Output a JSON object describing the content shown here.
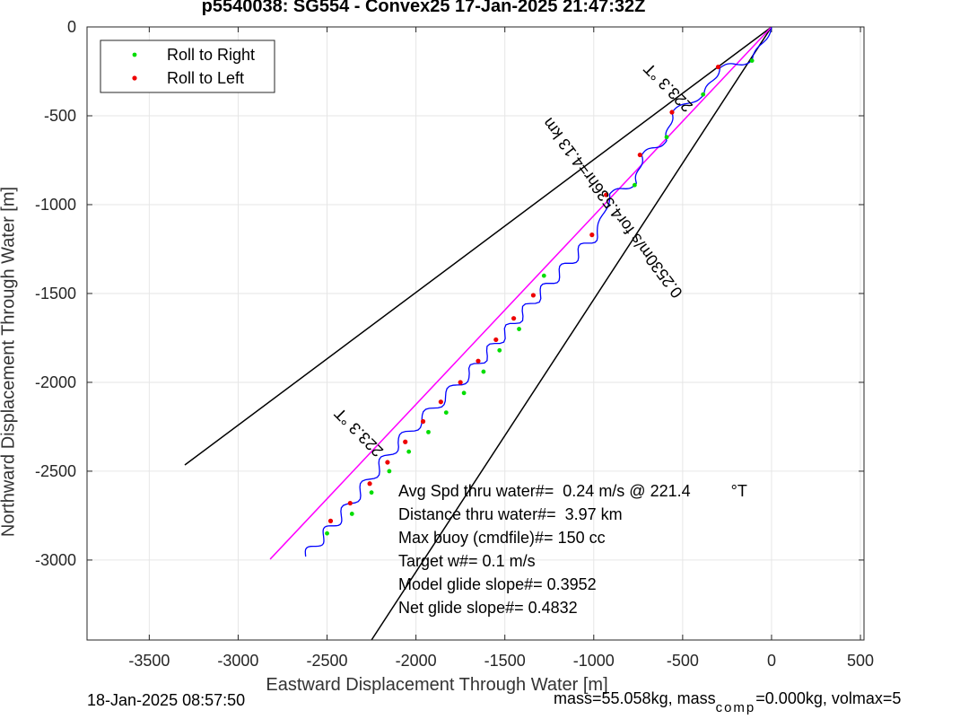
{
  "title": "p5540038: SG554 - Convex25 17-Jan-2025 21:47:32Z",
  "footer": {
    "date": "18-Jan-2025 08:57:50",
    "mass_prefix": "mass=55.058kg, mass",
    "mass_sub": "comp",
    "mass_suffix": "=0.000kg, volmax=5"
  },
  "colors": {
    "track": "#0000ff",
    "course": "#ff00ff",
    "cone": "#000000",
    "roll_right": "#00dd00",
    "roll_left": "#ee0000",
    "grid": "#e6e6e6"
  },
  "chart_data": {
    "type": "scatter",
    "xlabel": "Eastward Displacement Through Water [m]",
    "ylabel": "Northward Displacement Through Water [m]",
    "xlim": [
      -3850,
      520
    ],
    "ylim": [
      -3450,
      0
    ],
    "xticks": [
      -3500,
      -3000,
      -2500,
      -2000,
      -1500,
      -1000,
      -500,
      0,
      500
    ],
    "yticks": [
      0,
      -500,
      -1000,
      -1500,
      -2000,
      -2500,
      -3000
    ],
    "grid": true,
    "legend_position": "top-left",
    "legend": [
      "Roll to Right",
      "Roll to Left"
    ],
    "course_line": {
      "x": [
        0,
        -2820
      ],
      "y": [
        0,
        -2995
      ]
    },
    "cone_lines": [
      {
        "x": [
          0,
          -3300
        ],
        "y": [
          0,
          -2465
        ]
      },
      {
        "x": [
          0,
          -2250
        ],
        "y": [
          0,
          -3450
        ]
      }
    ],
    "track_anchors": [
      {
        "x": 0,
        "y": 0
      },
      {
        "x": -110,
        "y": -190
      },
      {
        "x": -290,
        "y": -230
      },
      {
        "x": -380,
        "y": -380
      },
      {
        "x": -560,
        "y": -480
      },
      {
        "x": -590,
        "y": -640
      },
      {
        "x": -730,
        "y": -720
      },
      {
        "x": -760,
        "y": -880
      },
      {
        "x": -910,
        "y": -940
      },
      {
        "x": -980,
        "y": -1160
      },
      {
        "x": -1300,
        "y": -1500
      },
      {
        "x": -1700,
        "y": -1950
      },
      {
        "x": -2100,
        "y": -2340
      },
      {
        "x": -2420,
        "y": -2750
      },
      {
        "x": -2620,
        "y": -2980
      }
    ],
    "roll_left_points": [
      {
        "x": -300,
        "y": -225
      },
      {
        "x": -560,
        "y": -480
      },
      {
        "x": -740,
        "y": -720
      },
      {
        "x": -930,
        "y": -945
      },
      {
        "x": -1010,
        "y": -1170
      },
      {
        "x": -1340,
        "y": -1510
      },
      {
        "x": -1450,
        "y": -1640
      },
      {
        "x": -1550,
        "y": -1760
      },
      {
        "x": -1650,
        "y": -1880
      },
      {
        "x": -1750,
        "y": -2000
      },
      {
        "x": -1860,
        "y": -2110
      },
      {
        "x": -1960,
        "y": -2220
      },
      {
        "x": -2060,
        "y": -2335
      },
      {
        "x": -2160,
        "y": -2450
      },
      {
        "x": -2260,
        "y": -2570
      },
      {
        "x": -2370,
        "y": -2680
      },
      {
        "x": -2480,
        "y": -2780
      }
    ],
    "roll_right_points": [
      {
        "x": -110,
        "y": -190
      },
      {
        "x": -385,
        "y": -380
      },
      {
        "x": -590,
        "y": -620
      },
      {
        "x": -770,
        "y": -890
      },
      {
        "x": -1280,
        "y": -1400
      },
      {
        "x": -1420,
        "y": -1700
      },
      {
        "x": -1530,
        "y": -1820
      },
      {
        "x": -1620,
        "y": -1940
      },
      {
        "x": -1730,
        "y": -2060
      },
      {
        "x": -1830,
        "y": -2170
      },
      {
        "x": -1930,
        "y": -2280
      },
      {
        "x": -2040,
        "y": -2390
      },
      {
        "x": -2150,
        "y": -2500
      },
      {
        "x": -2250,
        "y": -2620
      },
      {
        "x": -2360,
        "y": -2740
      },
      {
        "x": -2500,
        "y": -2850
      }
    ],
    "rotated_labels": [
      {
        "text": "223.3 °T",
        "x": -2300,
        "y": -2260,
        "angle": -135
      },
      {
        "text": "223.3 °T",
        "x": -560,
        "y": -320,
        "angle": -135
      },
      {
        "text": "0.2530m/s for4.536hr=4.13 km",
        "x": -870,
        "y": -1000,
        "angle": -127
      }
    ],
    "annotations": [
      "Avg Spd thru water#=  0.24 m/s @ 221.4         °T",
      "Distance thru water#=  3.97 km",
      "Max buoy (cmdfile)#= 150 cc",
      "Target w#= 0.1 m/s",
      "Model glide slope#= 0.3952",
      "Net glide slope#= 0.4832"
    ]
  }
}
